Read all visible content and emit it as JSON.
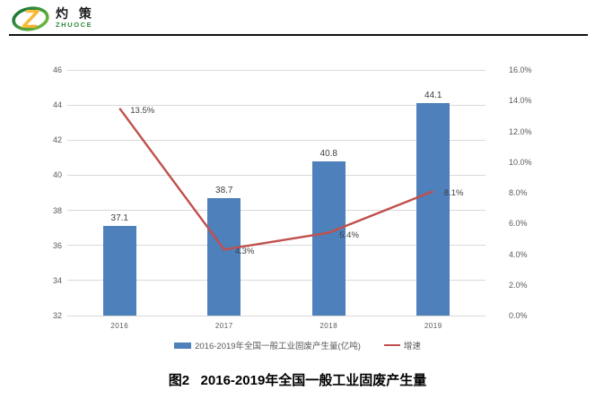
{
  "logo": {
    "letter": "Z",
    "name_cn": "灼 策",
    "name_en": "ZHUOCE"
  },
  "caption": "图2   2016-2019年全国一般工业固废产生量",
  "colors": {
    "bar": "#4e80bc",
    "line": "#c0504d",
    "grid": "#d9d9d9",
    "axis_text": "#595959",
    "data_label": "#3f3f3f",
    "logo_orange": "#f59a1e",
    "logo_yellow": "#ffd24a",
    "logo_green_dark": "#0e6f35",
    "logo_green_light": "#7ac143"
  },
  "chart_data": {
    "type": "bar",
    "subtype": "bar+line combo",
    "categories": [
      "2016",
      "2017",
      "2018",
      "2019"
    ],
    "series": [
      {
        "name": "2016-2019年全国一般工业固废产生量(亿吨)",
        "type": "bar",
        "axis": "left",
        "values": [
          37.1,
          38.7,
          40.8,
          44.1
        ],
        "labels": [
          "37.1",
          "38.7",
          "40.8",
          "44.1"
        ]
      },
      {
        "name": "增速",
        "type": "line",
        "axis": "right",
        "values": [
          13.5,
          4.3,
          5.4,
          8.1
        ],
        "labels": [
          "13.5%",
          "4.3%",
          "5.4%",
          "8.1%"
        ]
      }
    ],
    "left_axis": {
      "min": 32,
      "max": 46,
      "step": 2,
      "ticks": [
        "46",
        "44",
        "42",
        "40",
        "38",
        "36",
        "34",
        "32"
      ]
    },
    "right_axis": {
      "min": 0,
      "max": 16,
      "step": 2,
      "ticks": [
        "16.0%",
        "14.0%",
        "12.0%",
        "10.0%",
        "8.0%",
        "6.0%",
        "4.0%",
        "2.0%",
        "0.0%"
      ]
    },
    "grid": true,
    "legend_position": "bottom"
  }
}
